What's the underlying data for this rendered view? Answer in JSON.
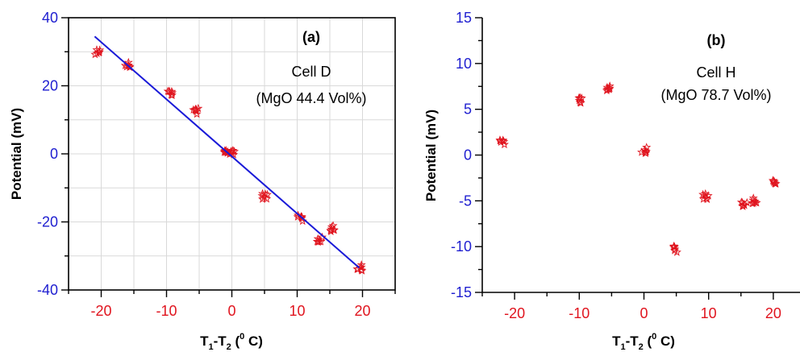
{
  "colors": {
    "axis": "#000000",
    "y_tick_label": "#1f1fd0",
    "x_tick_label": "#e0141e",
    "grid": "#d9d9d9",
    "marker": "#e0141e",
    "fit_line": "#1a1ad8"
  },
  "chart_data": [
    {
      "type": "scatter",
      "panel_label": "(a)",
      "annotation_line1": "Cell D",
      "annotation_line2": "(MgO 44.4 Vol%)",
      "xlabel": "T1-T2 (0 C)",
      "ylabel": "Potential (mV)",
      "xlim": [
        -25,
        25
      ],
      "ylim": [
        -40,
        40
      ],
      "x_ticks": [
        -20,
        -10,
        0,
        10,
        20
      ],
      "y_ticks": [
        -40,
        -20,
        0,
        20,
        40
      ],
      "grid": true,
      "marker": "star",
      "series": [
        {
          "x": [
            -20.5,
            -16,
            -9.5,
            -5.5,
            -1,
            0,
            5,
            10.5,
            13.5,
            15.5,
            19.5
          ],
          "y": [
            30,
            26,
            18,
            12.5,
            0.5,
            0.5,
            -12.5,
            -19,
            -25,
            -22,
            -33.5
          ]
        }
      ],
      "fit_line": {
        "x": [
          -21,
          19.5
        ],
        "y": [
          34.5,
          -33.5
        ]
      }
    },
    {
      "type": "scatter",
      "panel_label": "(b)",
      "annotation_line1": "Cell H",
      "annotation_line2": "(MgO 78.7 Vol%)",
      "xlabel": "T1-T2 (0 C)",
      "ylabel": "Potential (mV)",
      "xlim": [
        -25,
        25
      ],
      "ylim": [
        -15,
        15
      ],
      "x_ticks": [
        -20,
        -10,
        0,
        10,
        20
      ],
      "y_ticks": [
        -15,
        -10,
        -5,
        0,
        5,
        10,
        15
      ],
      "grid": false,
      "marker": "star",
      "series": [
        {
          "x": [
            -22,
            -10,
            -5.5,
            0,
            5,
            9.5,
            15.5,
            17,
            20
          ],
          "y": [
            1.5,
            6,
            7.2,
            0.5,
            -10.3,
            -4.5,
            -5.5,
            -5,
            -2.8
          ]
        }
      ]
    }
  ]
}
